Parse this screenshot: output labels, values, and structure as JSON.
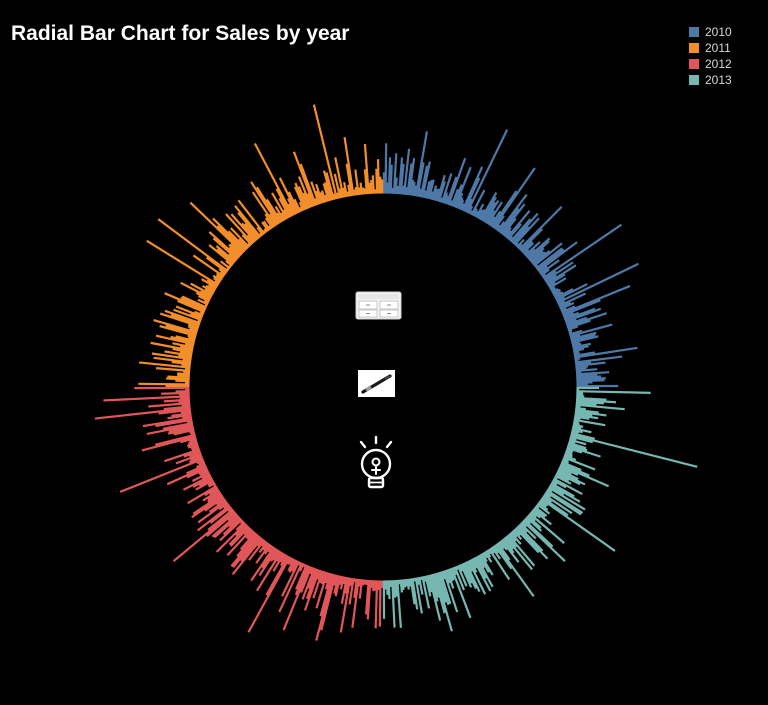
{
  "title": "Radial Bar Chart for Sales by year",
  "chart_data": {
    "type": "radial-bar",
    "title": "Radial Bar Chart for Sales by year",
    "legend_position": "top-right",
    "grid": false,
    "series": [
      {
        "name": "2010",
        "color": "#4e79a7",
        "angle_span_deg": [
          0,
          90
        ],
        "value_range": [
          0,
          100
        ],
        "approx_value_max": 100
      },
      {
        "name": "2011",
        "color": "#f28e2b",
        "angle_span_deg": [
          270,
          360
        ],
        "value_range": [
          0,
          100
        ],
        "approx_value_max": 100
      },
      {
        "name": "2012",
        "color": "#e15759",
        "angle_span_deg": [
          180,
          270
        ],
        "value_range": [
          0,
          100
        ],
        "approx_value_max": 100
      },
      {
        "name": "2013",
        "color": "#76b7b2",
        "angle_span_deg": [
          90,
          180
        ],
        "value_range": [
          0,
          100
        ],
        "approx_value_max": 100
      }
    ],
    "center_icons": [
      {
        "name": "drawer-cabinet-icon"
      },
      {
        "name": "pen-icon"
      },
      {
        "name": "lightbulb-icon"
      }
    ]
  }
}
